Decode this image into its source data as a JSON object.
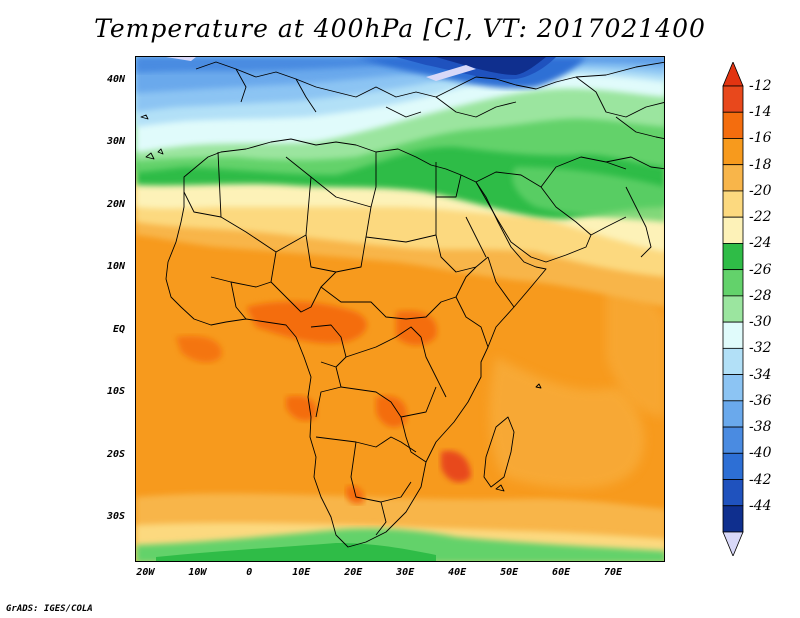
{
  "title": "Temperature at 400hPa [C], VT: 2017021400",
  "credit": "GrADS: IGES/COLA",
  "lat_labels": [
    "40N",
    "30N",
    "20N",
    "10N",
    "EQ",
    "10S",
    "20S",
    "30S"
  ],
  "lon_labels": [
    "20W",
    "10W",
    "0",
    "10E",
    "20E",
    "30E",
    "40E",
    "50E",
    "60E",
    "70E"
  ],
  "colorbar": {
    "labels": [
      "-12",
      "-14",
      "-16",
      "-18",
      "-20",
      "-22",
      "-24",
      "-26",
      "-28",
      "-30",
      "-32",
      "-34",
      "-36",
      "-38",
      "-40",
      "-42",
      "-44"
    ],
    "colors": [
      "#e8481c",
      "#f46d0e",
      "#f79a1d",
      "#f8b54a",
      "#fcd97f",
      "#fdf2b8",
      "#2fbc47",
      "#63d26b",
      "#9be59f",
      "#e0fbfb",
      "#b2e0f7",
      "#8cc4f3",
      "#6aa9ec",
      "#4a8be1",
      "#2d6fd5",
      "#1f52be",
      "#0f2f8e"
    ],
    "top_color": "#e23411",
    "bottom_color": "#d8d8f8"
  },
  "legend_placement": "right",
  "axes": {
    "lon_min": -22,
    "lon_max": 80,
    "lat_min": -37,
    "lat_max": 44
  }
}
